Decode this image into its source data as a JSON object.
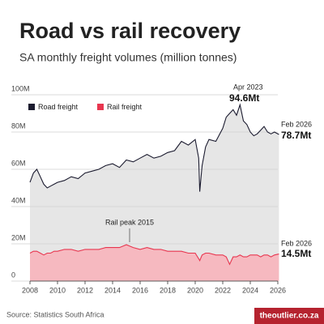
{
  "chart_data": {
    "type": "area-line",
    "title": "Road vs rail recovery",
    "subtitle": "SA monthly freight volumes (million tonnes)",
    "source": "Source: Statistics South Africa",
    "credit": "theoutlier.co.za",
    "x": [
      2008,
      2008.25,
      2008.5,
      2008.75,
      2009,
      2009.25,
      2009.5,
      2009.75,
      2010,
      2010.5,
      2011,
      2011.5,
      2012,
      2012.5,
      2013,
      2013.5,
      2014,
      2014.5,
      2015,
      2015.5,
      2016,
      2016.5,
      2017,
      2017.5,
      2018,
      2018.5,
      2019,
      2019.5,
      2020,
      2020.25,
      2020.33,
      2020.5,
      2020.75,
      2021,
      2021.5,
      2022,
      2022.25,
      2022.5,
      2022.75,
      2023,
      2023.25,
      2023.5,
      2023.75,
      2024,
      2024.25,
      2024.5,
      2024.75,
      2025,
      2025.25,
      2025.5,
      2025.75,
      2026.08
    ],
    "series": [
      {
        "name": "Road freight",
        "color": "#1b1b2f",
        "fill": "#e6e6e6",
        "values": [
          53,
          58,
          60,
          56,
          52,
          50,
          51,
          52,
          53,
          54,
          56,
          55,
          58,
          59,
          60,
          62,
          63,
          61,
          65,
          64,
          66,
          68,
          66,
          67,
          69,
          70,
          75,
          73,
          76,
          66,
          48,
          62,
          72,
          76,
          75,
          82,
          88,
          90,
          92,
          89,
          94.6,
          86,
          84,
          80,
          78,
          79,
          81,
          83,
          80,
          79,
          80,
          78.7
        ]
      },
      {
        "name": "Rail freight",
        "color": "#e8364f",
        "fill": "#f6b9c0",
        "values": [
          15,
          16,
          16,
          15,
          14,
          15,
          15,
          16,
          16,
          17,
          17,
          16,
          17,
          17,
          17,
          18,
          18,
          18,
          19.5,
          18,
          17,
          18,
          17,
          17,
          16,
          16,
          16,
          15,
          15,
          12,
          11,
          14,
          15,
          15,
          14,
          14,
          13,
          9,
          13,
          13,
          14,
          13,
          13,
          14,
          14,
          14,
          13,
          14,
          14,
          13,
          14,
          14.5
        ]
      }
    ],
    "annotations": [
      "Apr 2023",
      "94.6Mt",
      "Feb 2026",
      "78.7Mt",
      "Feb 2026",
      "14.5Mt",
      "Rail peak 2015"
    ],
    "xlim": [
      2008,
      2026
    ],
    "xticks": [
      2008,
      2010,
      2012,
      2014,
      2016,
      2018,
      2020,
      2022,
      2024,
      2026
    ],
    "ylim": [
      0,
      100
    ],
    "yticks": [
      0,
      {
        "value": 20,
        "label": "20M"
      },
      {
        "value": 40,
        "label": "40M"
      },
      {
        "value": 60,
        "label": "60M"
      },
      {
        "value": 80,
        "label": "80M"
      },
      {
        "value": 100,
        "label": "100M"
      }
    ],
    "grid": true
  }
}
